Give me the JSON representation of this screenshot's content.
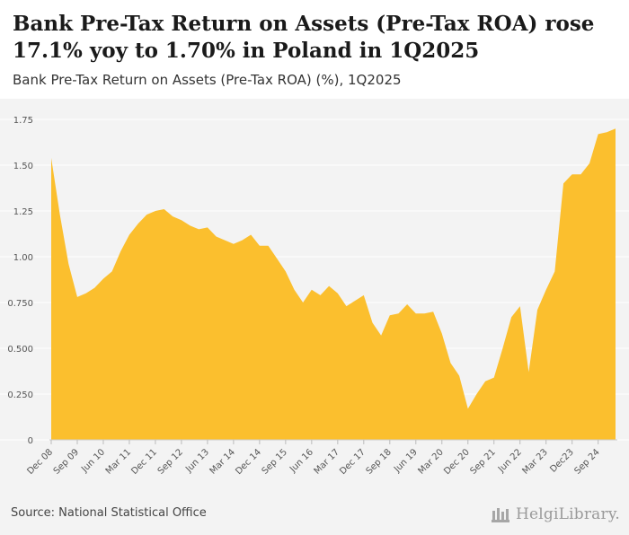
{
  "header": {
    "title": "Bank Pre-Tax Return on Assets (Pre-Tax ROA) rose 17.1% yoy to 1.70% in Poland in 1Q2025",
    "subtitle": "Bank Pre-Tax Return on Assets (Pre-Tax ROA) (%), 1Q2025"
  },
  "footer": {
    "source": "Source: National Statistical Office",
    "brand": "HelgiLibrary."
  },
  "colors": {
    "fill": "#fbbf2e",
    "background": "#f3f3f3",
    "grid": "#ffffff",
    "axis_text": "#555555"
  },
  "chart_data": {
    "type": "area",
    "title": "Bank Pre-Tax Return on Assets (Pre-Tax ROA) (%), 1Q2025",
    "xlabel": "",
    "ylabel": "",
    "ylim": [
      0,
      1.75
    ],
    "yticks": [
      0,
      0.25,
      0.5,
      0.75,
      1.0,
      1.25,
      1.5,
      1.75
    ],
    "ytick_labels": [
      "0",
      "0.250",
      "0.500",
      "0.750",
      "1.00",
      "1.25",
      "1.50",
      "1.75"
    ],
    "xtick_labels": [
      "Dec 08",
      "Sep 09",
      "Jun 10",
      "Mar 11",
      "Dec 11",
      "Sep 12",
      "Jun 13",
      "Mar 14",
      "Dec 14",
      "Sep 15",
      "Jun 16",
      "Mar 17",
      "Dec 17",
      "Sep 18",
      "Jun 19",
      "Mar 20",
      "Dec 20",
      "Sep 21",
      "Jun 22",
      "Mar 23",
      "Dec23",
      "Sep 24"
    ],
    "xtick_index": [
      0,
      3,
      6,
      9,
      12,
      15,
      18,
      21,
      24,
      27,
      30,
      33,
      36,
      39,
      42,
      45,
      48,
      51,
      54,
      57,
      60,
      63
    ],
    "x": [
      "4Q2008",
      "1Q2009",
      "2Q2009",
      "3Q2009",
      "4Q2009",
      "1Q2010",
      "2Q2010",
      "3Q2010",
      "4Q2010",
      "1Q2011",
      "2Q2011",
      "3Q2011",
      "4Q2011",
      "1Q2012",
      "2Q2012",
      "3Q2012",
      "4Q2012",
      "1Q2013",
      "2Q2013",
      "3Q2013",
      "4Q2013",
      "1Q2014",
      "2Q2014",
      "3Q2014",
      "4Q2014",
      "1Q2015",
      "2Q2015",
      "3Q2015",
      "4Q2015",
      "1Q2016",
      "2Q2016",
      "3Q2016",
      "4Q2016",
      "1Q2017",
      "2Q2017",
      "3Q2017",
      "4Q2017",
      "1Q2018",
      "2Q2018",
      "3Q2018",
      "4Q2018",
      "1Q2019",
      "2Q2019",
      "3Q2019",
      "4Q2019",
      "1Q2020",
      "2Q2020",
      "3Q2020",
      "4Q2020",
      "1Q2021",
      "2Q2021",
      "3Q2021",
      "4Q2021",
      "1Q2022",
      "2Q2022",
      "3Q2022",
      "4Q2022",
      "1Q2023",
      "2Q2023",
      "3Q2023",
      "4Q2023",
      "1Q2024",
      "2Q2024",
      "3Q2024",
      "4Q2024",
      "1Q2025"
    ],
    "values": [
      1.54,
      1.23,
      0.96,
      0.78,
      0.8,
      0.83,
      0.88,
      0.92,
      1.03,
      1.12,
      1.18,
      1.23,
      1.25,
      1.26,
      1.22,
      1.2,
      1.17,
      1.15,
      1.16,
      1.11,
      1.09,
      1.07,
      1.09,
      1.12,
      1.06,
      1.06,
      0.99,
      0.92,
      0.82,
      0.75,
      0.82,
      0.79,
      0.84,
      0.8,
      0.73,
      0.76,
      0.79,
      0.64,
      0.57,
      0.68,
      0.69,
      0.74,
      0.69,
      0.69,
      0.7,
      0.58,
      0.42,
      0.35,
      0.17,
      0.25,
      0.32,
      0.34,
      0.5,
      0.67,
      0.73,
      0.37,
      0.71,
      0.82,
      0.92,
      1.4,
      1.45,
      1.45,
      1.51,
      1.67,
      1.68,
      1.7
    ]
  }
}
